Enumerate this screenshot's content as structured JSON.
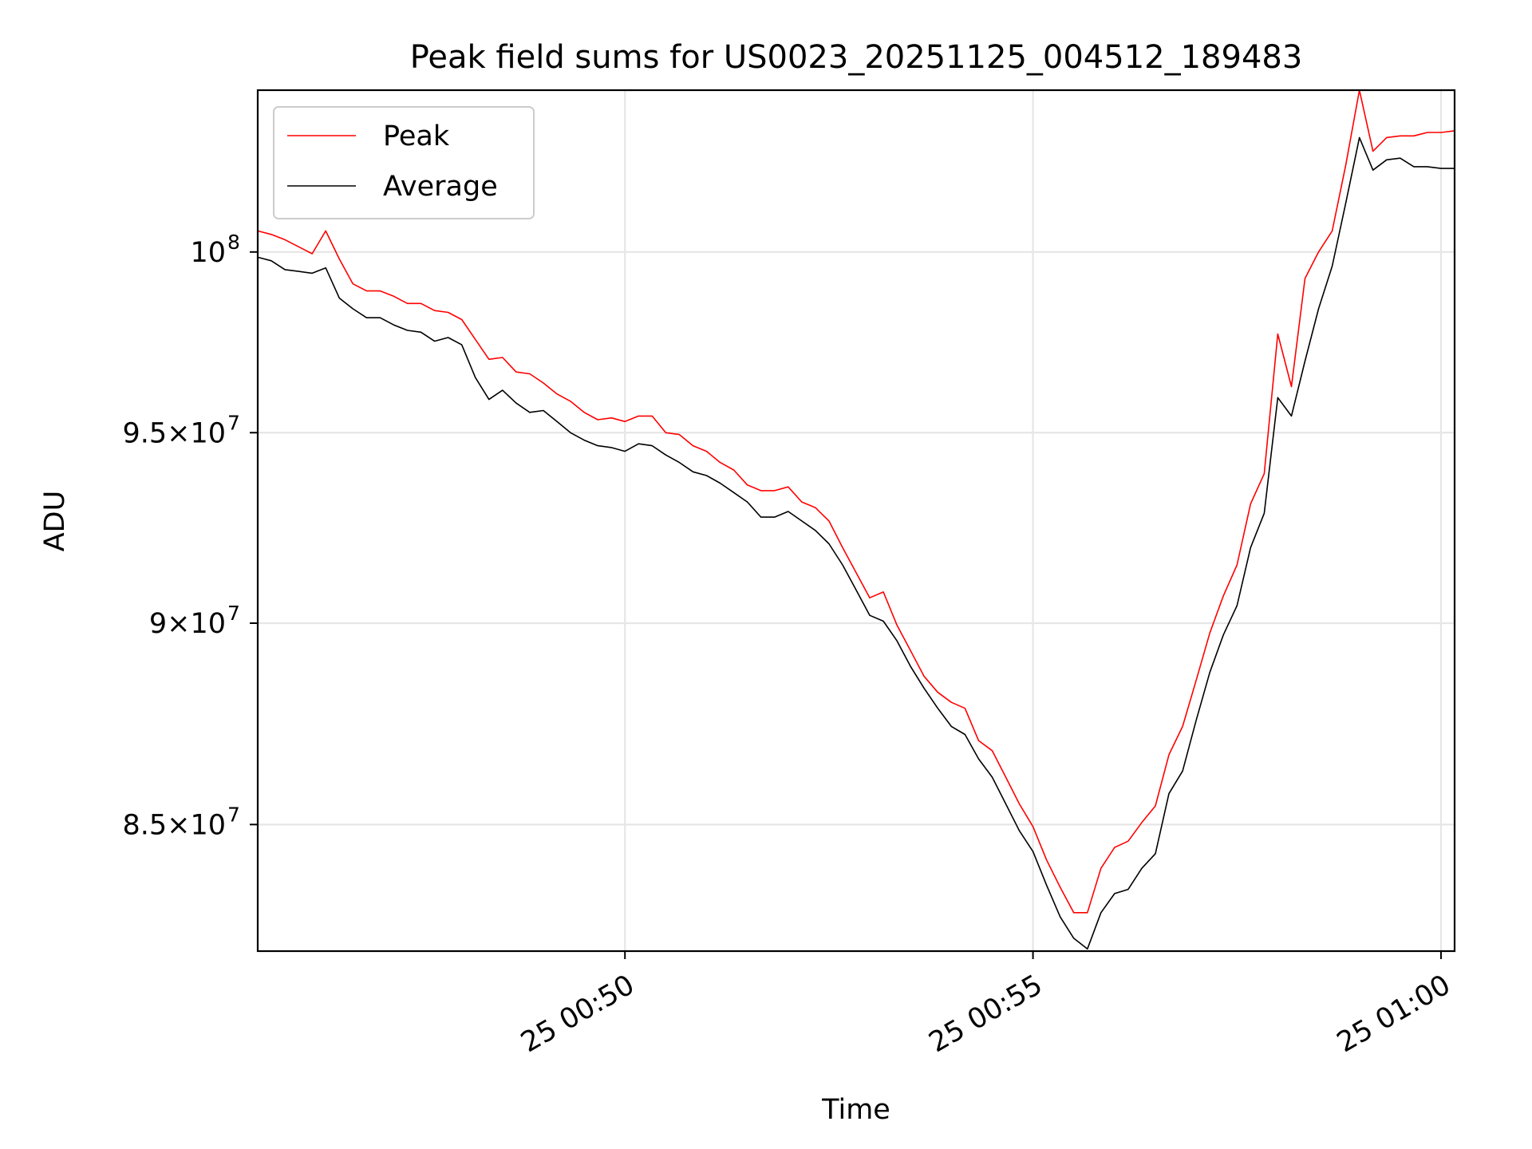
{
  "chart_data": {
    "type": "line",
    "title": "Peak field sums for US0023_20251125_004512_189483",
    "xlabel": "Time",
    "ylabel": "ADU",
    "yscale": "log",
    "x_ticks": [
      "25 00:50",
      "25 00:55",
      "25 01:00"
    ],
    "y_ticks": [
      {
        "value": 85000000,
        "base": "8.5×10",
        "exp": "7"
      },
      {
        "value": 90000000,
        "base": "9×10",
        "exp": "7"
      },
      {
        "value": 95000000,
        "base": "9.5×10",
        "exp": "7"
      },
      {
        "value": 100000000,
        "base": "10",
        "exp": "8"
      }
    ],
    "ylim": [
      82000000,
      104700000
    ],
    "xlim": [
      "2025-11-25 00:45:30",
      "2025-11-25 01:00:10"
    ],
    "grid": true,
    "legend_position": "upper-left",
    "series": [
      {
        "name": "Peak",
        "color": "#ff0000",
        "x": [
          "2025-11-25 00:45:30",
          "2025-11-25 00:45:40",
          "2025-11-25 00:45:50",
          "2025-11-25 00:46:00",
          "2025-11-25 00:46:10",
          "2025-11-25 00:46:20",
          "2025-11-25 00:46:30",
          "2025-11-25 00:46:40",
          "2025-11-25 00:46:50",
          "2025-11-25 00:47:00",
          "2025-11-25 00:47:10",
          "2025-11-25 00:47:20",
          "2025-11-25 00:47:30",
          "2025-11-25 00:47:40",
          "2025-11-25 00:47:50",
          "2025-11-25 00:48:00",
          "2025-11-25 00:48:10",
          "2025-11-25 00:48:20",
          "2025-11-25 00:48:30",
          "2025-11-25 00:48:40",
          "2025-11-25 00:48:50",
          "2025-11-25 00:49:00",
          "2025-11-25 00:49:10",
          "2025-11-25 00:49:20",
          "2025-11-25 00:49:30",
          "2025-11-25 00:49:40",
          "2025-11-25 00:49:50",
          "2025-11-25 00:50:00",
          "2025-11-25 00:50:10",
          "2025-11-25 00:50:20",
          "2025-11-25 00:50:30",
          "2025-11-25 00:50:40",
          "2025-11-25 00:50:50",
          "2025-11-25 00:51:00",
          "2025-11-25 00:51:10",
          "2025-11-25 00:51:20",
          "2025-11-25 00:51:30",
          "2025-11-25 00:51:40",
          "2025-11-25 00:51:50",
          "2025-11-25 00:52:00",
          "2025-11-25 00:52:10",
          "2025-11-25 00:52:20",
          "2025-11-25 00:52:30",
          "2025-11-25 00:52:40",
          "2025-11-25 00:52:50",
          "2025-11-25 00:53:00",
          "2025-11-25 00:53:10",
          "2025-11-25 00:53:20",
          "2025-11-25 00:53:30",
          "2025-11-25 00:53:40",
          "2025-11-25 00:53:50",
          "2025-11-25 00:54:00",
          "2025-11-25 00:54:10",
          "2025-11-25 00:54:20",
          "2025-11-25 00:54:30",
          "2025-11-25 00:54:40",
          "2025-11-25 00:54:50",
          "2025-11-25 00:55:00",
          "2025-11-25 00:55:10",
          "2025-11-25 00:55:20",
          "2025-11-25 00:55:30",
          "2025-11-25 00:55:40",
          "2025-11-25 00:55:50",
          "2025-11-25 00:56:00",
          "2025-11-25 00:56:10",
          "2025-11-25 00:56:20",
          "2025-11-25 00:56:30",
          "2025-11-25 00:56:40",
          "2025-11-25 00:56:50",
          "2025-11-25 00:57:00",
          "2025-11-25 00:57:10",
          "2025-11-25 00:57:20",
          "2025-11-25 00:57:30",
          "2025-11-25 00:57:40",
          "2025-11-25 00:57:50",
          "2025-11-25 00:58:00",
          "2025-11-25 00:58:10",
          "2025-11-25 00:58:20",
          "2025-11-25 00:58:30",
          "2025-11-25 00:58:40",
          "2025-11-25 00:58:50",
          "2025-11-25 00:59:00",
          "2025-11-25 00:59:10",
          "2025-11-25 00:59:20",
          "2025-11-25 00:59:30",
          "2025-11-25 00:59:40",
          "2025-11-25 00:59:50",
          "2025-11-25 01:00:00",
          "2025-11-25 01:00:10"
        ],
        "values": [
          100600000,
          100500000,
          100350000,
          100150000,
          99950000,
          100600000,
          99800000,
          99100000,
          98900000,
          98900000,
          98750000,
          98550000,
          98550000,
          98350000,
          98300000,
          98100000,
          97550000,
          97000000,
          97050000,
          96650000,
          96600000,
          96350000,
          96050000,
          95850000,
          95550000,
          95350000,
          95400000,
          95300000,
          95450000,
          95450000,
          95000000,
          94950000,
          94650000,
          94500000,
          94200000,
          94000000,
          93600000,
          93450000,
          93450000,
          93550000,
          93150000,
          93000000,
          92650000,
          91950000,
          91300000,
          90650000,
          90800000,
          89950000,
          89300000,
          88650000,
          88250000,
          88000000,
          87850000,
          87050000,
          86800000,
          86150000,
          85500000,
          84950000,
          84150000,
          83500000,
          82900000,
          82900000,
          83950000,
          84450000,
          84600000,
          85050000,
          85450000,
          86700000,
          87400000,
          88550000,
          89750000,
          90700000,
          91500000,
          93100000,
          93900000,
          97700000,
          96250000,
          99250000,
          100000000,
          100600000,
          102500000,
          104700000,
          102900000,
          103300000,
          103350000,
          103350000,
          103450000,
          103450000,
          103500000
        ]
      },
      {
        "name": "Average",
        "color": "#000000",
        "x": [
          "2025-11-25 00:45:30",
          "2025-11-25 00:45:40",
          "2025-11-25 00:45:50",
          "2025-11-25 00:46:00",
          "2025-11-25 00:46:10",
          "2025-11-25 00:46:20",
          "2025-11-25 00:46:30",
          "2025-11-25 00:46:40",
          "2025-11-25 00:46:50",
          "2025-11-25 00:47:00",
          "2025-11-25 00:47:10",
          "2025-11-25 00:47:20",
          "2025-11-25 00:47:30",
          "2025-11-25 00:47:40",
          "2025-11-25 00:47:50",
          "2025-11-25 00:48:00",
          "2025-11-25 00:48:10",
          "2025-11-25 00:48:20",
          "2025-11-25 00:48:30",
          "2025-11-25 00:48:40",
          "2025-11-25 00:48:50",
          "2025-11-25 00:49:00",
          "2025-11-25 00:49:10",
          "2025-11-25 00:49:20",
          "2025-11-25 00:49:30",
          "2025-11-25 00:49:40",
          "2025-11-25 00:49:50",
          "2025-11-25 00:50:00",
          "2025-11-25 00:50:10",
          "2025-11-25 00:50:20",
          "2025-11-25 00:50:30",
          "2025-11-25 00:50:40",
          "2025-11-25 00:50:50",
          "2025-11-25 00:51:00",
          "2025-11-25 00:51:10",
          "2025-11-25 00:51:20",
          "2025-11-25 00:51:30",
          "2025-11-25 00:51:40",
          "2025-11-25 00:51:50",
          "2025-11-25 00:52:00",
          "2025-11-25 00:52:10",
          "2025-11-25 00:52:20",
          "2025-11-25 00:52:30",
          "2025-11-25 00:52:40",
          "2025-11-25 00:52:50",
          "2025-11-25 00:53:00",
          "2025-11-25 00:53:10",
          "2025-11-25 00:53:20",
          "2025-11-25 00:53:30",
          "2025-11-25 00:53:40",
          "2025-11-25 00:53:50",
          "2025-11-25 00:54:00",
          "2025-11-25 00:54:10",
          "2025-11-25 00:54:20",
          "2025-11-25 00:54:30",
          "2025-11-25 00:54:40",
          "2025-11-25 00:54:50",
          "2025-11-25 00:55:00",
          "2025-11-25 00:55:10",
          "2025-11-25 00:55:20",
          "2025-11-25 00:55:30",
          "2025-11-25 00:55:40",
          "2025-11-25 00:55:50",
          "2025-11-25 00:56:00",
          "2025-11-25 00:56:10",
          "2025-11-25 00:56:20",
          "2025-11-25 00:56:30",
          "2025-11-25 00:56:40",
          "2025-11-25 00:56:50",
          "2025-11-25 00:57:00",
          "2025-11-25 00:57:10",
          "2025-11-25 00:57:20",
          "2025-11-25 00:57:30",
          "2025-11-25 00:57:40",
          "2025-11-25 00:57:50",
          "2025-11-25 00:58:00",
          "2025-11-25 00:58:10",
          "2025-11-25 00:58:20",
          "2025-11-25 00:58:30",
          "2025-11-25 00:58:40",
          "2025-11-25 00:58:50",
          "2025-11-25 00:59:00",
          "2025-11-25 00:59:10",
          "2025-11-25 00:59:20",
          "2025-11-25 00:59:30",
          "2025-11-25 00:59:40",
          "2025-11-25 00:59:50",
          "2025-11-25 01:00:00",
          "2025-11-25 01:00:10"
        ],
        "values": [
          99850000,
          99750000,
          99500000,
          99450000,
          99400000,
          99550000,
          98700000,
          98400000,
          98150000,
          98150000,
          97950000,
          97800000,
          97750000,
          97500000,
          97600000,
          97400000,
          96500000,
          95900000,
          96150000,
          95800000,
          95550000,
          95600000,
          95300000,
          95000000,
          94800000,
          94650000,
          94600000,
          94500000,
          94700000,
          94650000,
          94400000,
          94200000,
          93950000,
          93850000,
          93650000,
          93400000,
          93150000,
          92750000,
          92750000,
          92900000,
          92650000,
          92400000,
          92050000,
          91500000,
          90850000,
          90200000,
          90050000,
          89550000,
          88900000,
          88350000,
          87850000,
          87400000,
          87200000,
          86600000,
          86150000,
          85500000,
          84850000,
          84350000,
          83550000,
          82800000,
          82300000,
          82050000,
          82900000,
          83350000,
          83450000,
          83950000,
          84300000,
          85750000,
          86300000,
          87550000,
          88750000,
          89700000,
          90450000,
          91950000,
          92850000,
          95950000,
          95450000,
          96950000,
          98400000,
          99600000,
          101400000,
          103300000,
          102350000,
          102650000,
          102700000,
          102450000,
          102450000,
          102400000,
          102400000
        ]
      }
    ]
  }
}
